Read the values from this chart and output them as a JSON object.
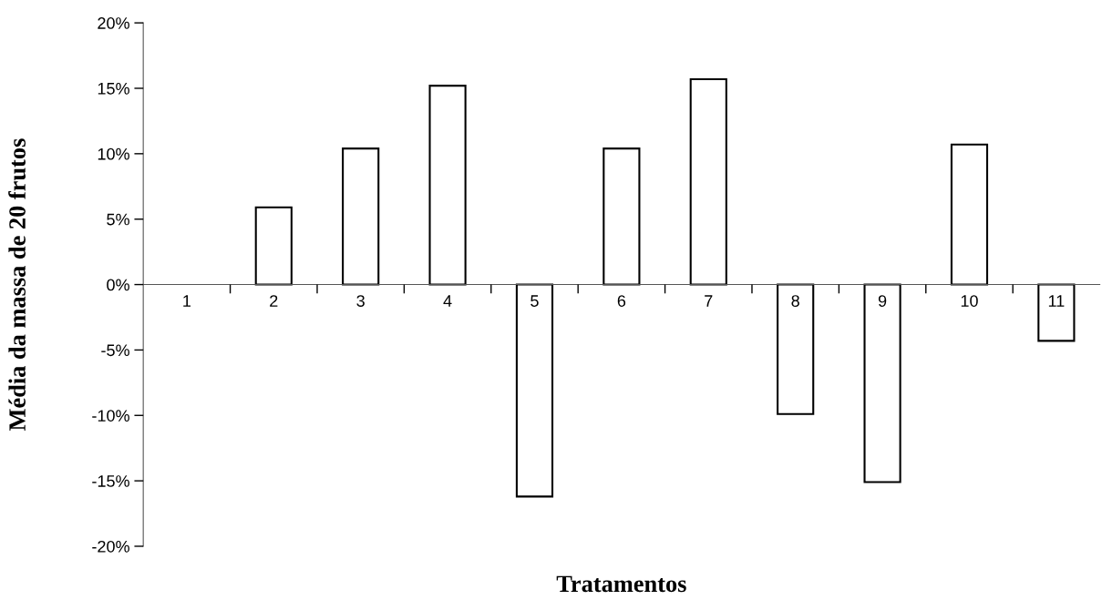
{
  "chart_data": {
    "type": "bar",
    "xlabel": "Tratamentos",
    "ylabel": "Média da massa de 20 frutos",
    "categories": [
      "1",
      "2",
      "3",
      "4",
      "5",
      "6",
      "7",
      "8",
      "9",
      "10",
      "11"
    ],
    "values": [
      0,
      5.9,
      10.4,
      15.2,
      -16.2,
      10.4,
      15.7,
      -9.9,
      -15.1,
      10.7,
      -4.3
    ],
    "color": "#ffffff",
    "ylim": [
      -20,
      20
    ],
    "yticks": [
      {
        "value": -20,
        "label": "-20%"
      },
      {
        "value": -15,
        "label": "-15%"
      },
      {
        "value": -10,
        "label": "-10%"
      },
      {
        "value": -5,
        "label": "-5%"
      },
      {
        "value": 0,
        "label": "0%"
      },
      {
        "value": 5,
        "label": "5%"
      },
      {
        "value": 10,
        "label": "10%"
      },
      {
        "value": 15,
        "label": "15%"
      },
      {
        "value": 20,
        "label": "20%"
      }
    ],
    "grid": false,
    "legend": false
  }
}
